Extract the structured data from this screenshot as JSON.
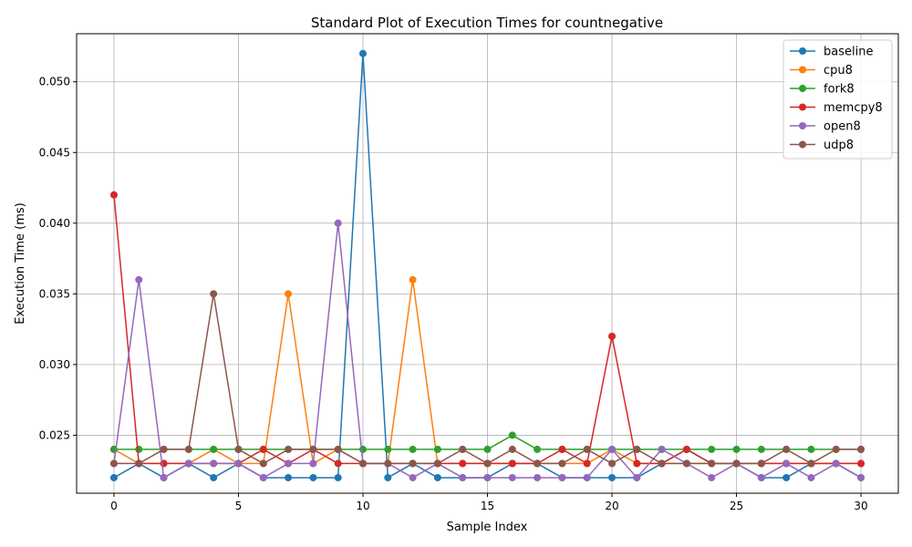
{
  "chart_data": {
    "type": "line",
    "title": "Standard Plot of Execution Times for countnegative",
    "xlabel": "Sample Index",
    "ylabel": "Execution Time (ms)",
    "xlim": [
      -1.5,
      31.5
    ],
    "ylim": [
      0.0209,
      0.0534
    ],
    "xticks": [
      0,
      5,
      10,
      15,
      20,
      25,
      30
    ],
    "xtick_labels": [
      "0",
      "5",
      "10",
      "15",
      "20",
      "25",
      "30"
    ],
    "yticks": [
      0.025,
      0.03,
      0.035,
      0.04,
      0.045,
      0.05
    ],
    "ytick_labels": [
      "0.025",
      "0.030",
      "0.035",
      "0.040",
      "0.045",
      "0.050"
    ],
    "grid": true,
    "legend_position": "top-right",
    "x": [
      0,
      1,
      2,
      3,
      4,
      5,
      6,
      7,
      8,
      9,
      10,
      11,
      12,
      13,
      14,
      15,
      16,
      17,
      18,
      19,
      20,
      21,
      22,
      23,
      24,
      25,
      26,
      27,
      28,
      29,
      30
    ],
    "series": [
      {
        "name": "baseline",
        "color": "#1f77b4",
        "values": [
          0.022,
          0.023,
          0.022,
          0.023,
          0.022,
          0.023,
          0.022,
          0.022,
          0.022,
          0.022,
          0.052,
          0.022,
          0.023,
          0.022,
          0.022,
          0.022,
          0.023,
          0.023,
          0.022,
          0.022,
          0.022,
          0.022,
          0.023,
          0.024,
          0.023,
          0.023,
          0.022,
          0.022,
          0.023,
          0.023,
          0.022
        ]
      },
      {
        "name": "cpu8",
        "color": "#ff7f0e",
        "values": [
          0.024,
          0.023,
          0.023,
          0.023,
          0.024,
          0.023,
          0.023,
          0.035,
          0.023,
          0.024,
          0.023,
          0.023,
          0.036,
          0.023,
          0.023,
          0.023,
          0.023,
          0.023,
          0.023,
          0.023,
          0.024,
          0.023,
          0.023,
          0.023,
          0.023,
          0.023,
          0.023,
          0.023,
          0.023,
          0.023,
          0.023
        ]
      },
      {
        "name": "fork8",
        "color": "#2ca02c",
        "values": [
          0.024,
          0.024,
          0.024,
          0.024,
          0.024,
          0.024,
          0.024,
          0.024,
          0.024,
          0.024,
          0.024,
          0.024,
          0.024,
          0.024,
          0.024,
          0.024,
          0.025,
          0.024,
          0.024,
          0.024,
          0.024,
          0.024,
          0.024,
          0.024,
          0.024,
          0.024,
          0.024,
          0.024,
          0.024,
          0.024,
          0.024
        ]
      },
      {
        "name": "memcpy8",
        "color": "#d62728",
        "values": [
          0.042,
          0.023,
          0.023,
          0.023,
          0.023,
          0.023,
          0.024,
          0.023,
          0.024,
          0.023,
          0.023,
          0.023,
          0.023,
          0.023,
          0.023,
          0.023,
          0.023,
          0.023,
          0.024,
          0.023,
          0.032,
          0.023,
          0.023,
          0.024,
          0.023,
          0.023,
          0.023,
          0.023,
          0.023,
          0.023,
          0.023
        ]
      },
      {
        "name": "open8",
        "color": "#9467bd",
        "values": [
          0.023,
          0.036,
          0.022,
          0.023,
          0.023,
          0.023,
          0.022,
          0.023,
          0.023,
          0.04,
          0.023,
          0.023,
          0.022,
          0.023,
          0.022,
          0.022,
          0.022,
          0.022,
          0.022,
          0.022,
          0.024,
          0.022,
          0.024,
          0.023,
          0.022,
          0.023,
          0.022,
          0.023,
          0.022,
          0.023,
          0.022
        ]
      },
      {
        "name": "udp8",
        "color": "#8c564b",
        "values": [
          0.023,
          0.023,
          0.024,
          0.024,
          0.035,
          0.024,
          0.023,
          0.024,
          0.024,
          0.024,
          0.023,
          0.023,
          0.023,
          0.023,
          0.024,
          0.023,
          0.024,
          0.023,
          0.023,
          0.024,
          0.023,
          0.024,
          0.023,
          0.023,
          0.023,
          0.023,
          0.023,
          0.024,
          0.023,
          0.024,
          0.024
        ]
      }
    ]
  }
}
